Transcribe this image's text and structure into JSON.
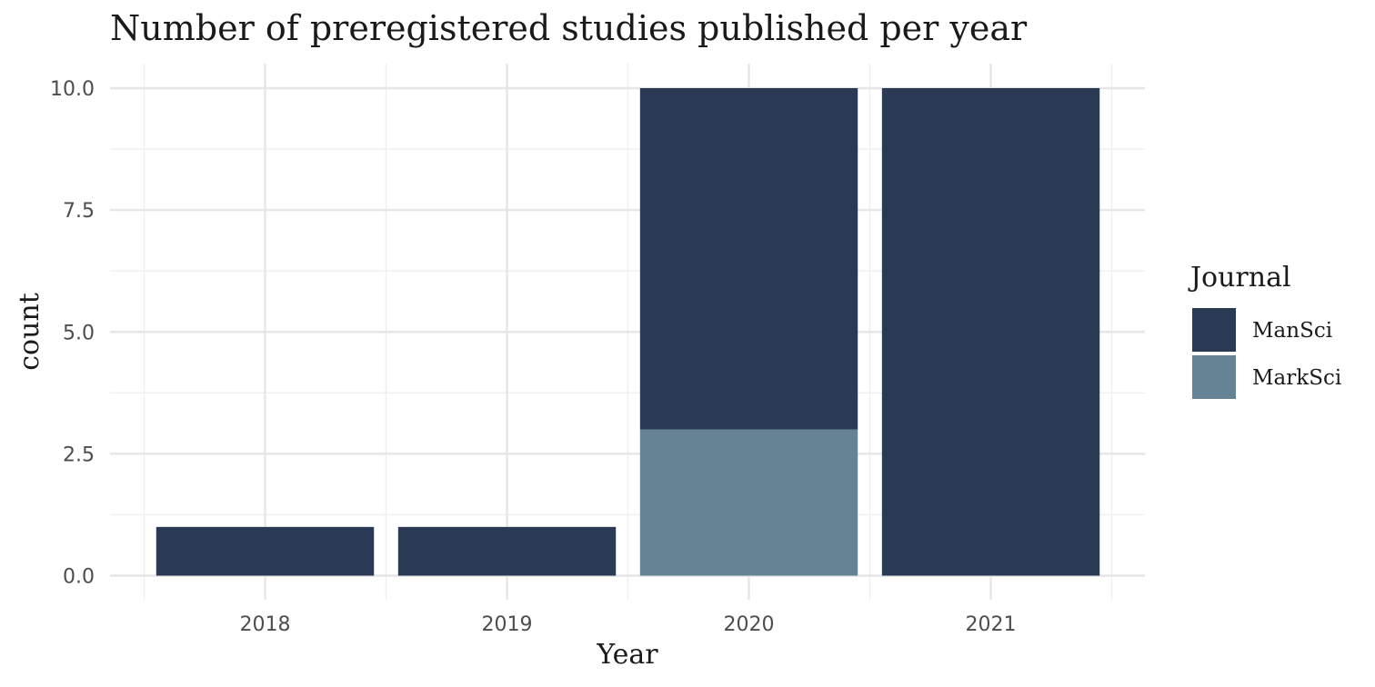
{
  "chart_data": {
    "type": "bar",
    "stacked": true,
    "title": "Number of preregistered studies published per year",
    "xlabel": "Year",
    "ylabel": "count",
    "categories": [
      "2018",
      "2019",
      "2020",
      "2021"
    ],
    "series": [
      {
        "name": "ManSci",
        "color": "#2a3a55",
        "values": [
          1,
          1,
          7,
          10
        ]
      },
      {
        "name": "MarkSci",
        "color": "#658395",
        "values": [
          0,
          0,
          3,
          0
        ]
      }
    ],
    "ylim": [
      0,
      10
    ],
    "yticks": [
      "0.0",
      "2.5",
      "5.0",
      "7.5",
      "10.0"
    ],
    "ytick_values": [
      0,
      2.5,
      5,
      7.5,
      10
    ],
    "grid": true,
    "legend": {
      "title": "Journal",
      "position": "right",
      "entries": [
        "ManSci",
        "MarkSci"
      ]
    }
  }
}
